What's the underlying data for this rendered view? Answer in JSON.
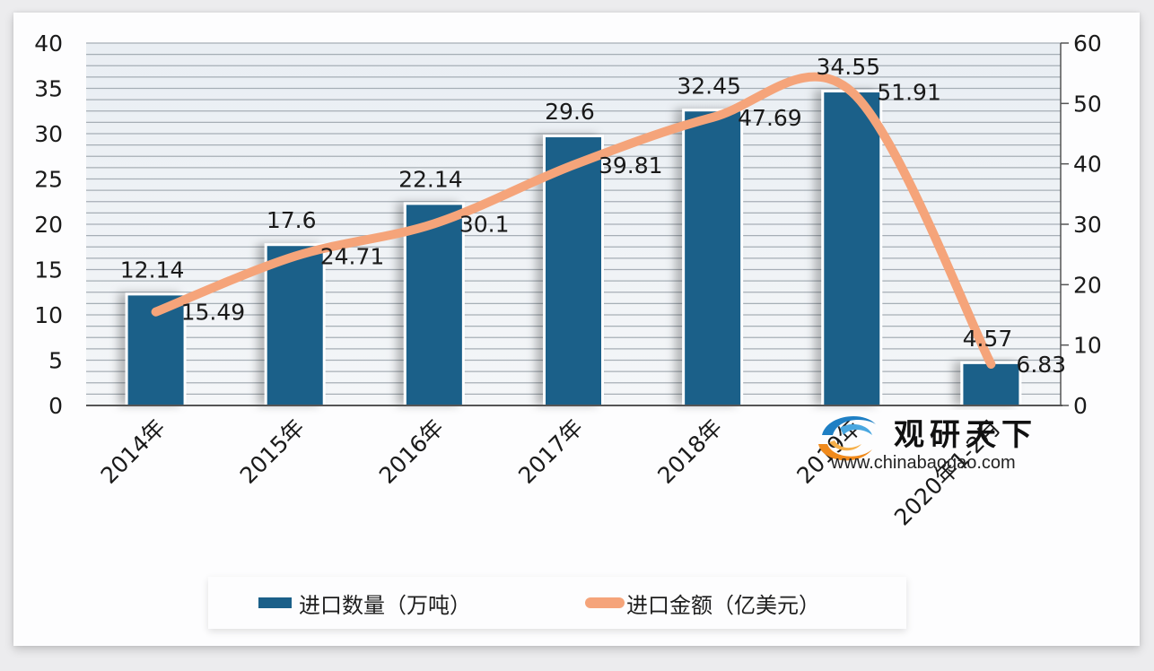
{
  "chart_data": {
    "type": "bar+line",
    "title": "",
    "categories": [
      "2014年",
      "2015年",
      "2016年",
      "2017年",
      "2018年",
      "2019年",
      "2020年1-2月"
    ],
    "series": [
      {
        "name": "进口数量（万吨）",
        "type": "bar",
        "axis": "left",
        "color": "#1b6089",
        "values": [
          12.14,
          17.6,
          22.14,
          29.6,
          32.45,
          34.55,
          4.57
        ]
      },
      {
        "name": "进口金额（亿美元）",
        "type": "line",
        "axis": "right",
        "color": "#f5a47a",
        "smooth": true,
        "values": [
          15.49,
          24.71,
          30.1,
          39.81,
          47.69,
          51.91,
          6.83
        ]
      }
    ],
    "left_axis": {
      "min": 0,
      "max": 40,
      "step": 5,
      "ticks": [
        "0",
        "5",
        "10",
        "15",
        "20",
        "25",
        "30",
        "35",
        "40"
      ]
    },
    "right_axis": {
      "min": 0,
      "max": 60,
      "step": 10,
      "ticks": [
        "0",
        "10",
        "20",
        "30",
        "40",
        "50",
        "60"
      ]
    },
    "grid": true,
    "legend_position": "bottom"
  },
  "legend": {
    "items": [
      {
        "label": "进口数量（万吨）",
        "kind": "bar",
        "color": "#1b6089"
      },
      {
        "label": "进口金额（亿美元）",
        "kind": "line",
        "color": "#f5a47a"
      }
    ]
  },
  "watermark": {
    "title": "观研天下",
    "url": "www.chinabaogao.com",
    "icon": "swirl-logo-icon"
  }
}
